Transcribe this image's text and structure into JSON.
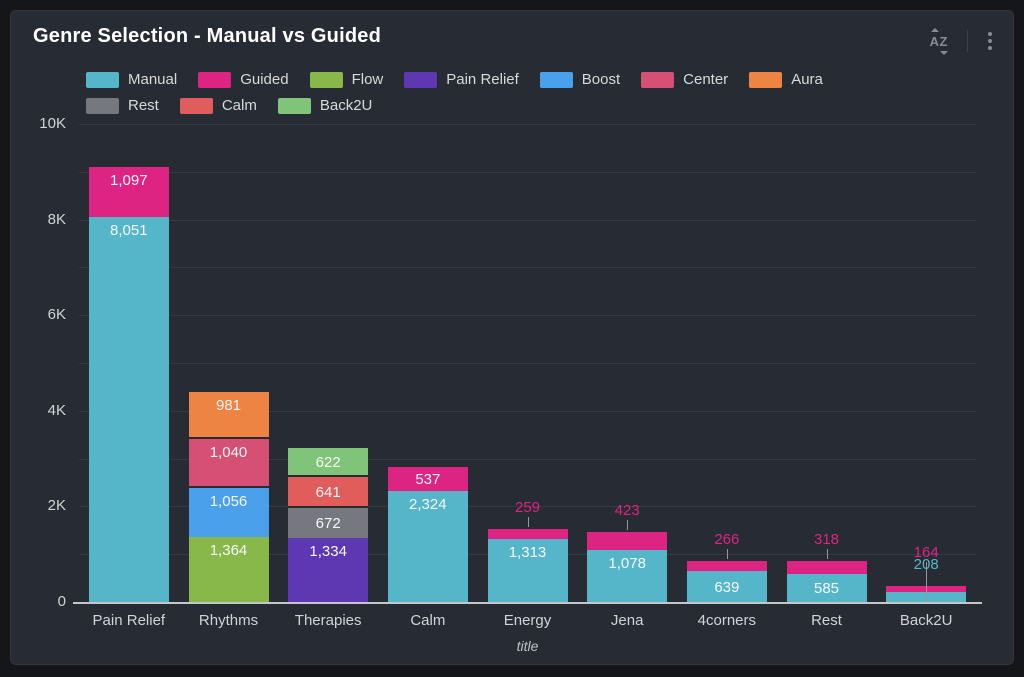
{
  "panel": {
    "title": "Genre Selection - Manual vs Guided",
    "sort_icon_text": "AZ"
  },
  "theme": {
    "background": "#141619",
    "panel_background": "#272b33",
    "gridline": "rgba(255,255,255,0.07)",
    "axis_line": "#c6c7c9",
    "tick_text": "#d2d3d5",
    "inner_label_text": "#f7f7f8"
  },
  "chart_data": {
    "type": "bar",
    "stacked": true,
    "title": "Genre Selection - Manual vs Guided",
    "xlabel": "title",
    "ylabel": "",
    "ylim": [
      0,
      10000
    ],
    "grid": true,
    "gridline_step": 1000,
    "legend_position": "top",
    "y_ticks": [
      {
        "label": "0",
        "value": 0
      },
      {
        "label": "2K",
        "value": 2000
      },
      {
        "label": "4K",
        "value": 4000
      },
      {
        "label": "6K",
        "value": 6000
      },
      {
        "label": "8K",
        "value": 8000
      },
      {
        "label": "10K",
        "value": 10000
      }
    ],
    "legend": [
      {
        "name": "Manual",
        "color": "#56b6c9"
      },
      {
        "name": "Guided",
        "color": "#dd2483"
      },
      {
        "name": "Flow",
        "color": "#89b84a"
      },
      {
        "name": "Pain Relief",
        "color": "#5e37b2"
      },
      {
        "name": "Boost",
        "color": "#4ba0ec"
      },
      {
        "name": "Center",
        "color": "#d55074"
      },
      {
        "name": "Aura",
        "color": "#ee8443"
      },
      {
        "name": "Rest",
        "color": "#75797f"
      },
      {
        "name": "Calm",
        "color": "#e15d5c"
      },
      {
        "name": "Back2U",
        "color": "#7fc479"
      }
    ],
    "categories": [
      "Pain Relief",
      "Rhythms",
      "Therapies",
      "Calm",
      "Energy",
      "Jena",
      "4corners",
      "Rest",
      "Back2U"
    ],
    "bars": [
      {
        "category": "Pain Relief",
        "segments": [
          {
            "series": "Manual",
            "value": 8051
          },
          {
            "series": "Guided",
            "value": 1097
          }
        ]
      },
      {
        "category": "Rhythms",
        "segments": [
          {
            "series": "Flow",
            "value": 1364
          },
          {
            "series": "Boost",
            "value": 1056
          },
          {
            "series": "Center",
            "value": 1040
          },
          {
            "series": "Aura",
            "value": 981
          }
        ]
      },
      {
        "category": "Therapies",
        "segments": [
          {
            "series": "Pain Relief",
            "value": 1334
          },
          {
            "series": "Rest",
            "value": 672
          },
          {
            "series": "Calm",
            "value": 641
          },
          {
            "series": "Back2U",
            "value": 622
          }
        ]
      },
      {
        "category": "Calm",
        "segments": [
          {
            "series": "Manual",
            "value": 2324
          },
          {
            "series": "Guided",
            "value": 537
          }
        ]
      },
      {
        "category": "Energy",
        "segments": [
          {
            "series": "Manual",
            "value": 1313
          },
          {
            "series": "Guided",
            "value": 259
          }
        ]
      },
      {
        "category": "Jena",
        "segments": [
          {
            "series": "Manual",
            "value": 1078
          },
          {
            "series": "Guided",
            "value": 423
          }
        ]
      },
      {
        "category": "4corners",
        "segments": [
          {
            "series": "Manual",
            "value": 639
          },
          {
            "series": "Guided",
            "value": 266
          }
        ]
      },
      {
        "category": "Rest",
        "segments": [
          {
            "series": "Manual",
            "value": 585
          },
          {
            "series": "Guided",
            "value": 318
          }
        ]
      },
      {
        "category": "Back2U",
        "segments": [
          {
            "series": "Manual",
            "value": 208
          },
          {
            "series": "Guided",
            "value": 164
          }
        ]
      }
    ]
  }
}
